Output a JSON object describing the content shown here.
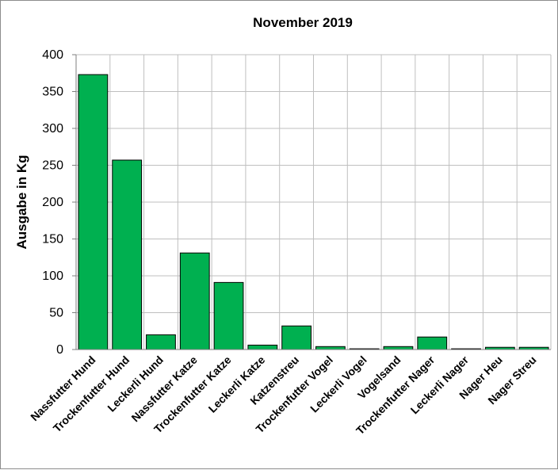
{
  "chart_data": {
    "type": "bar",
    "title": "November 2019",
    "xlabel": "",
    "ylabel": "Ausgabe in Kg",
    "ylim": [
      0,
      400
    ],
    "yticks": [
      0,
      50,
      100,
      150,
      200,
      250,
      300,
      350,
      400
    ],
    "grid": true,
    "legend": "none",
    "bar_color": "#00b050",
    "categories": [
      "Nassfutter Hund",
      "Trockenfutter Hund",
      "Leckerli Hund",
      "Nassfutter Katze",
      "Trockenfutter Katze",
      "Leckerli Katze",
      "Katzenstreu",
      "Trockenfutter Vogel",
      "Leckerli Vogel",
      "Vogelsand",
      "Trockenfutter Nager",
      "Leckerli Nager",
      "Nager Heu",
      "Nager Streu"
    ],
    "values": [
      373,
      257,
      20,
      131,
      91,
      6,
      32,
      4,
      1,
      4,
      17,
      1,
      3,
      3
    ]
  }
}
